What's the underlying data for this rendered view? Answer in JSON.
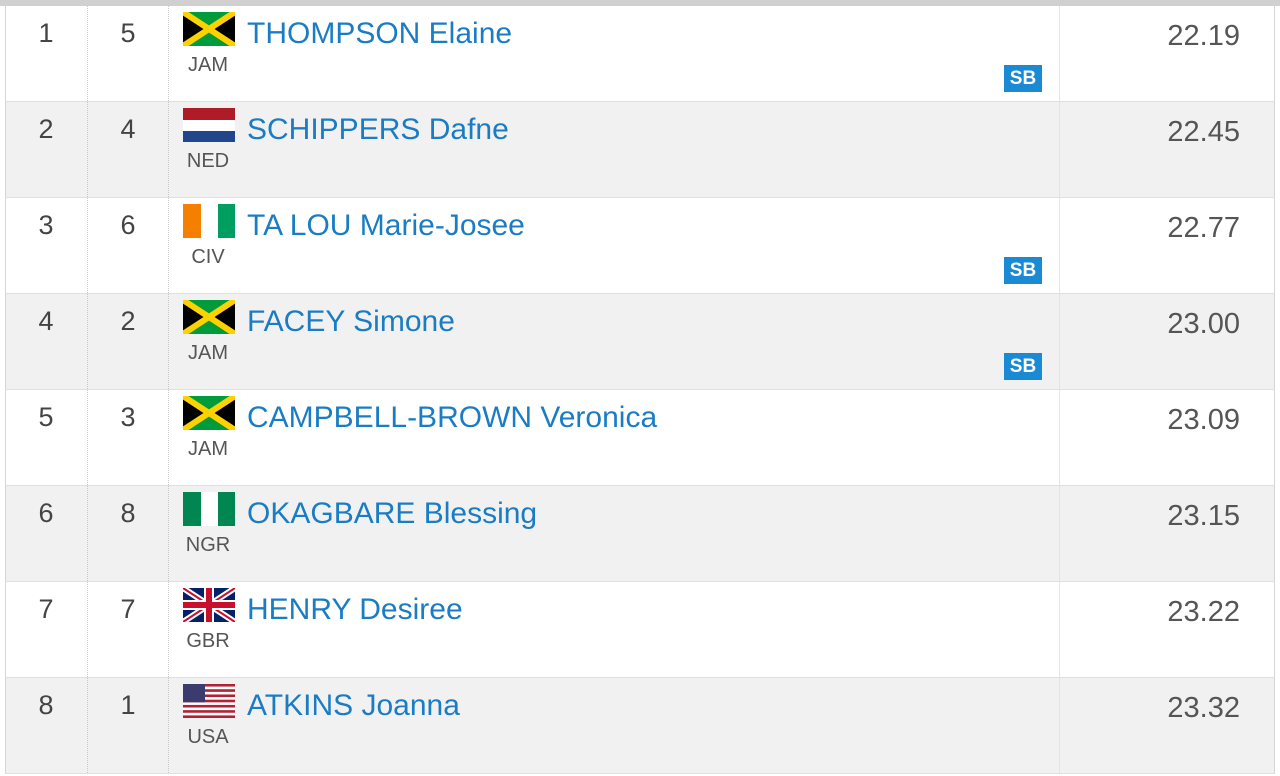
{
  "table": {
    "rows": [
      {
        "rank": 1,
        "lane": 5,
        "country": "JAM",
        "name": "THOMPSON Elaine",
        "mark": "22.19",
        "note": "SB"
      },
      {
        "rank": 2,
        "lane": 4,
        "country": "NED",
        "name": "SCHIPPERS Dafne",
        "mark": "22.45"
      },
      {
        "rank": 3,
        "lane": 6,
        "country": "CIV",
        "name": "TA LOU Marie-Josee",
        "mark": "22.77",
        "note": "SB"
      },
      {
        "rank": 4,
        "lane": 2,
        "country": "JAM",
        "name": "FACEY Simone",
        "mark": "23.00",
        "note": "SB"
      },
      {
        "rank": 5,
        "lane": 3,
        "country": "JAM",
        "name": "CAMPBELL-BROWN Veronica",
        "mark": "23.09"
      },
      {
        "rank": 6,
        "lane": 8,
        "country": "NGR",
        "name": "OKAGBARE Blessing",
        "mark": "23.15"
      },
      {
        "rank": 7,
        "lane": 7,
        "country": "GBR",
        "name": "HENRY Desiree",
        "mark": "23.22"
      },
      {
        "rank": 8,
        "lane": 1,
        "country": "USA",
        "name": "ATKINS Joanna",
        "mark": "23.32"
      }
    ]
  }
}
